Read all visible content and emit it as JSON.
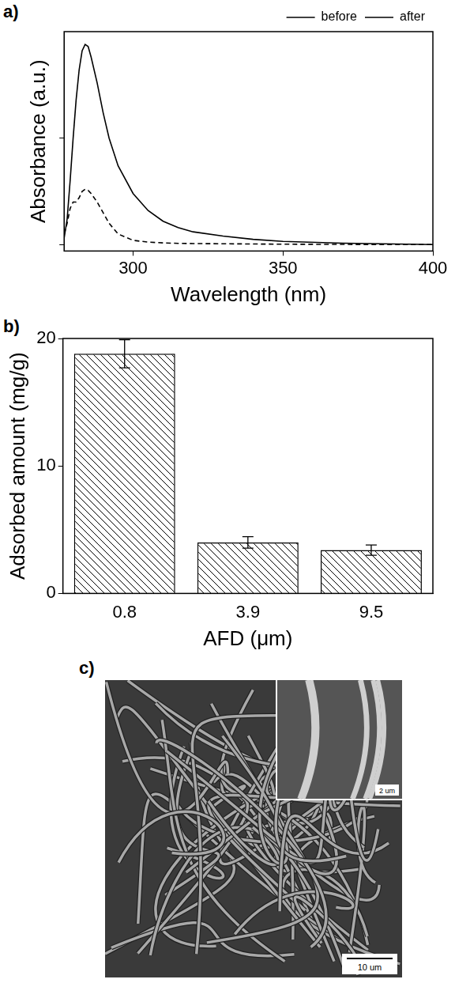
{
  "chart_data": [
    {
      "label": "a)",
      "type": "line",
      "x_label": "Wavelength (nm)",
      "y_label": "Absorbance (a.u.)",
      "x": [
        277,
        278,
        279,
        280,
        281,
        282,
        283,
        284,
        285,
        286,
        288,
        290,
        292,
        295,
        300,
        305,
        310,
        315,
        320,
        330,
        340,
        350,
        370,
        400
      ],
      "series": [
        {
          "name": "before",
          "color": "#000000",
          "line_style": "solid",
          "values": [
            0.03,
            0.12,
            0.3,
            0.5,
            0.68,
            0.82,
            0.91,
            0.94,
            0.93,
            0.88,
            0.76,
            0.62,
            0.5,
            0.37,
            0.24,
            0.16,
            0.11,
            0.08,
            0.06,
            0.04,
            0.025,
            0.015,
            0.007,
            0.0
          ]
        },
        {
          "name": "after",
          "color": "#000000",
          "line_style": "dashed",
          "values": [
            0.05,
            0.1,
            0.17,
            0.2,
            0.2,
            0.22,
            0.25,
            0.26,
            0.255,
            0.24,
            0.2,
            0.15,
            0.1,
            0.05,
            0.02,
            0.012,
            0.008,
            0.006,
            0.005,
            0.004,
            0.003,
            0.002,
            0.001,
            0.0
          ]
        }
      ],
      "xlim": [
        277,
        400
      ],
      "xticks": [
        300,
        350,
        400
      ],
      "ylim": [
        -0.03,
        1.0
      ],
      "yticks": [
        0,
        0.5
      ],
      "tick_labels": "x",
      "grid": false,
      "legend": "top"
    },
    {
      "label": "b)",
      "type": "bar",
      "x_label": "AFD (μm)",
      "y_label": "Adsorbed amount (mg/g)",
      "categories": [
        "0.8",
        "3.9",
        "9.5"
      ],
      "values": [
        18.8,
        4.0,
        3.4
      ],
      "errors": [
        1.1,
        0.45,
        0.4
      ],
      "color": "#000000",
      "ylim": [
        0,
        20
      ],
      "yticks": [
        0,
        10,
        20
      ],
      "grid": false
    }
  ],
  "image": {
    "label": "c)",
    "scale_bar": "10 um",
    "inset_scale_bar": "2 um"
  }
}
